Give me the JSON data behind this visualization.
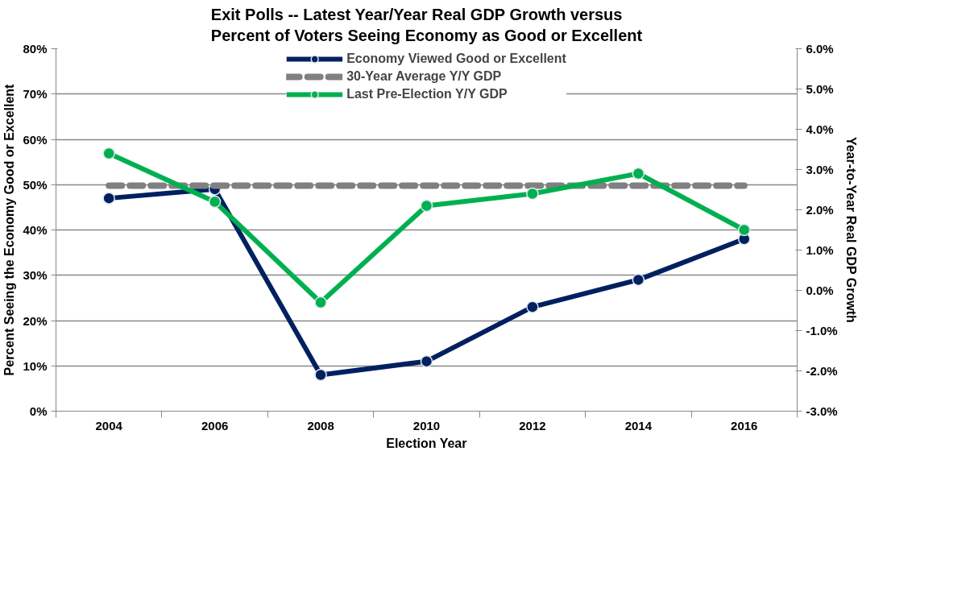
{
  "chart_data": {
    "type": "line",
    "title": "Exit Polls -- Latest Year/Year Real GDP Growth versus\nPercent of Voters Seeing Economy as Good or Excellent",
    "xlabel": "Election Year",
    "ylabel": "Percent Seeing the Economy Good or Excellent",
    "y2label": "Year-to-Year Real GDP Growth",
    "categories": [
      "2004",
      "2006",
      "2008",
      "2010",
      "2012",
      "2014",
      "2016"
    ],
    "series": [
      {
        "name": "Economy Viewed Good or Excellent",
        "color": "#002060",
        "values": [
          47,
          49,
          8,
          11,
          23,
          29,
          38
        ],
        "marker": "circle",
        "line_style": "solid"
      },
      {
        "name": "30-Year Average Y/Y GDP",
        "color": "#808080",
        "values": [
          2.6,
          2.6,
          2.6,
          2.6,
          2.6,
          2.6,
          2.6
        ],
        "axis": "y2",
        "marker": "none",
        "line_style": "dashed"
      },
      {
        "name": "Last Pre-Election Y/Y GDP",
        "color": "#00b050",
        "values": [
          3.4,
          2.2,
          -0.3,
          2.1,
          2.4,
          2.9,
          1.5
        ],
        "axis": "y2",
        "marker": "circle",
        "line_style": "solid"
      }
    ],
    "ylim": [
      0,
      80
    ],
    "yticks": [
      {
        "value": 0,
        "label": "0%"
      },
      {
        "value": 10,
        "label": "10%"
      },
      {
        "value": 20,
        "label": "20%"
      },
      {
        "value": 30,
        "label": "30%"
      },
      {
        "value": 40,
        "label": "40%"
      },
      {
        "value": 50,
        "label": "50%"
      },
      {
        "value": 60,
        "label": "60%"
      },
      {
        "value": 70,
        "label": "70%"
      },
      {
        "value": 80,
        "label": "80%"
      }
    ],
    "y2lim": [
      -3,
      6
    ],
    "y2ticks": [
      {
        "value": -3,
        "label": "-3.0%"
      },
      {
        "value": -2,
        "label": "-2.0%"
      },
      {
        "value": -1,
        "label": "-1.0%"
      },
      {
        "value": 0,
        "label": "0.0%"
      },
      {
        "value": 1,
        "label": "1.0%"
      },
      {
        "value": 2,
        "label": "2.0%"
      },
      {
        "value": 3,
        "label": "3.0%"
      },
      {
        "value": 4,
        "label": "4.0%"
      },
      {
        "value": 5,
        "label": "5.0%"
      },
      {
        "value": 6,
        "label": "6.0%"
      }
    ],
    "grid": "y",
    "legend": "top"
  }
}
